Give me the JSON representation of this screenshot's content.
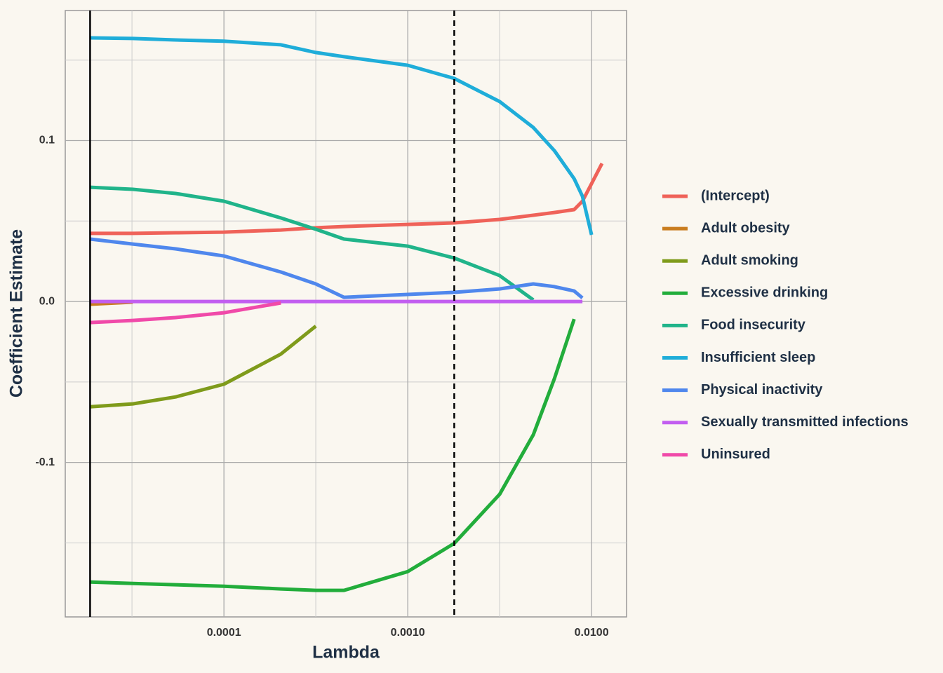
{
  "chart_data": {
    "type": "line",
    "x_label": "Lambda",
    "y_label": "Coefficient Estimate",
    "x_scale": "log",
    "grid": true,
    "legend_position": "right",
    "xlim": [
      1.37e-05,
      0.0155
    ],
    "ylim": [
      -0.196,
      0.1808
    ],
    "xticks": [
      {
        "value": 0.0001,
        "label": "0.0001"
      },
      {
        "value": 0.001,
        "label": "0.0010"
      },
      {
        "value": 0.01,
        "label": "0.0100"
      }
    ],
    "xminorticks": [
      3.16e-05,
      0.000316,
      0.00316
    ],
    "yticks": [
      -0.1,
      {
        "value": 0,
        "label": "0.0"
      },
      0.1
    ],
    "yminorticks": [
      -0.15,
      -0.05,
      0.05,
      0.15
    ],
    "vlines": [
      {
        "value": 1.87e-05,
        "style": "solid"
      },
      {
        "value": 0.00179,
        "style": "dashed"
      }
    ],
    "x": [
      1.87e-05,
      3.19e-05,
      5.46e-05,
      0.0001,
      0.000204,
      0.000316,
      0.00045,
      0.001,
      0.00179,
      0.00316,
      0.00482,
      0.00628,
      0.00804,
      0.00892,
      0.01,
      0.0114
    ],
    "series": [
      {
        "name": "(Intercept)",
        "color": "#ef6259",
        "values": [
          0.0423,
          0.0423,
          0.0427,
          0.0431,
          0.0444,
          0.0458,
          0.0466,
          0.0479,
          0.0488,
          0.051,
          0.0536,
          0.0553,
          0.0571,
          0.0623,
          0.0732,
          0.0858
        ]
      },
      {
        "name": "Adult obesity",
        "color": "#c97d1f",
        "values": [
          -0.0017,
          -0.0004,
          null,
          null,
          null,
          null,
          null,
          null,
          null,
          null,
          null,
          null,
          null,
          null,
          null,
          null
        ]
      },
      {
        "name": "Adult smoking",
        "color": "#7f9b1b",
        "values": [
          -0.0654,
          -0.0636,
          -0.0593,
          -0.0514,
          -0.0327,
          -0.0153,
          null,
          null,
          null,
          null,
          null,
          null,
          null,
          null,
          null,
          null
        ]
      },
      {
        "name": "Excessive drinking",
        "color": "#22ad3b",
        "values": [
          -0.1743,
          -0.1752,
          -0.176,
          -0.1769,
          -0.1786,
          -0.1795,
          -0.1795,
          -0.1678,
          -0.1503,
          -0.1198,
          -0.0828,
          -0.0479,
          -0.0109,
          null,
          null,
          null
        ]
      },
      {
        "name": "Food insecurity",
        "color": "#20b48a",
        "values": [
          0.071,
          0.0697,
          0.0671,
          0.0623,
          0.0519,
          0.0449,
          0.0388,
          0.0344,
          0.027,
          0.0161,
          0.001,
          null,
          null,
          null,
          null,
          null
        ]
      },
      {
        "name": "Insufficient sleep",
        "color": "#1fadd9",
        "values": [
          0.1638,
          0.1634,
          0.1625,
          0.1617,
          0.1595,
          0.1547,
          0.1521,
          0.1468,
          0.1386,
          0.1242,
          0.1081,
          0.0937,
          0.0763,
          0.0654,
          0.0414,
          null
        ]
      },
      {
        "name": "Physical inactivity",
        "color": "#4f87ed",
        "values": [
          0.0388,
          0.0357,
          0.0327,
          0.0283,
          0.0183,
          0.0109,
          0.0026,
          0.0044,
          0.0057,
          0.0078,
          0.0109,
          0.0092,
          0.0065,
          0.0022,
          null,
          null
        ]
      },
      {
        "name": "Sexually transmitted infections",
        "color": "#c25ef0",
        "values": [
          0,
          0,
          0,
          0,
          0,
          0,
          0,
          0,
          0,
          0,
          0,
          0,
          0,
          0,
          null,
          null
        ]
      },
      {
        "name": "Uninsured",
        "color": "#f04aa9",
        "values": [
          -0.0131,
          -0.0118,
          -0.01,
          -0.007,
          -0.0009,
          null,
          null,
          null,
          null,
          null,
          null,
          null,
          null,
          null,
          null,
          null
        ]
      }
    ]
  }
}
